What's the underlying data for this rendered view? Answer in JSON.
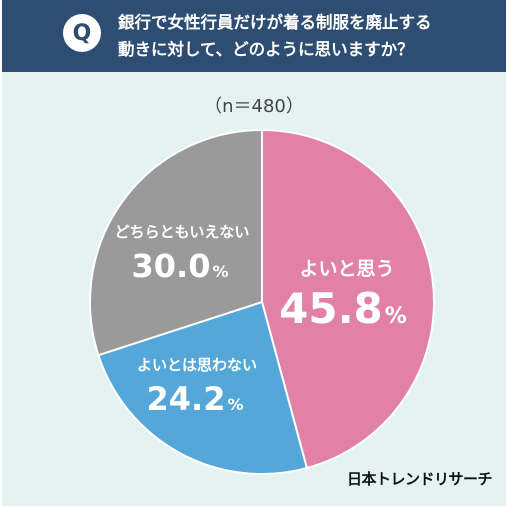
{
  "question": {
    "badge": "Q",
    "line1": "銀行で女性行員だけが着る制服を廃止する",
    "line2": "動きに対して、どのように思いますか？"
  },
  "sample_size": "（n＝480）",
  "brand": "日本トレンドリサーチ",
  "colors": {
    "header": "#2e4d72",
    "background": "#e4f3f2",
    "good": "#e181a5",
    "not_good": "#53a7d9",
    "neither": "#9a9a9a"
  },
  "chart_data": {
    "type": "pie",
    "unit": "%",
    "slices": [
      {
        "label": "よいと思う",
        "value": 45.8,
        "value_text": "45.8",
        "color": "#e181a5"
      },
      {
        "label": "よいとは思わない",
        "value": 24.2,
        "value_text": "24.2",
        "color": "#53a7d9"
      },
      {
        "label": "どちらともいえない",
        "value": 30.0,
        "value_text": "30.0",
        "color": "#9a9a9a"
      }
    ]
  }
}
